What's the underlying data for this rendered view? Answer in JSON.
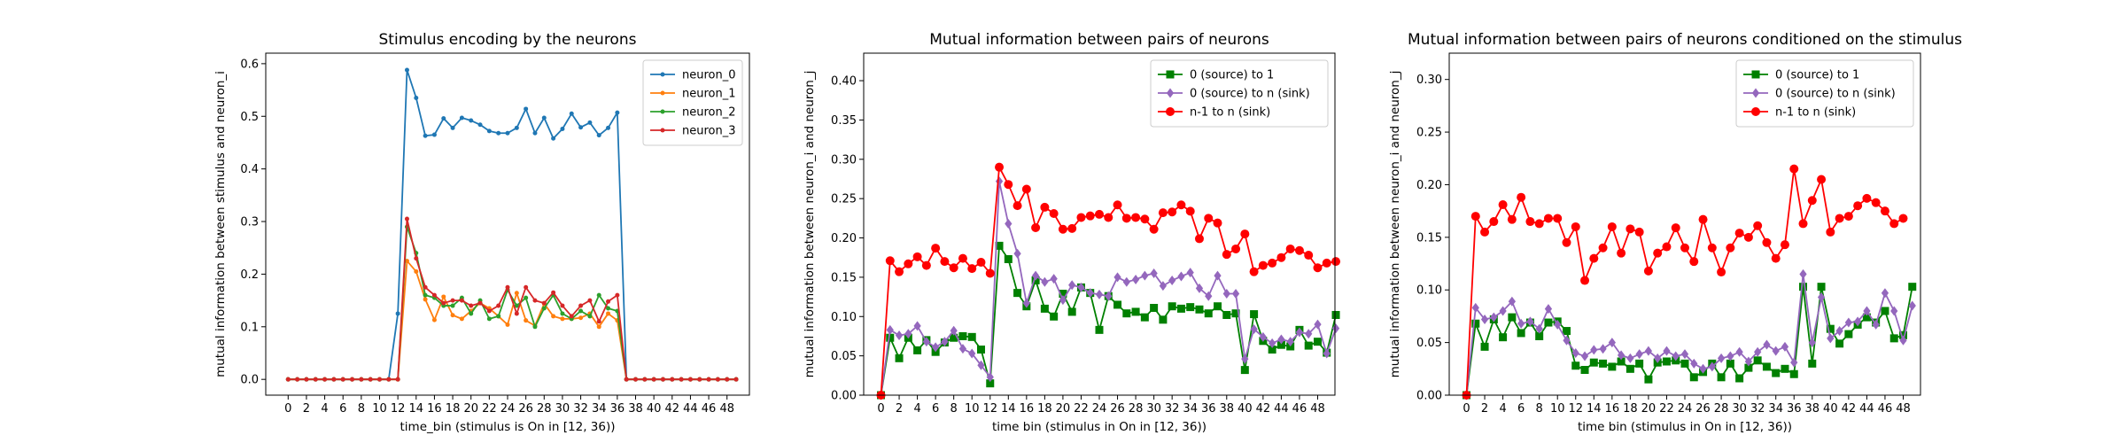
{
  "chart_data": [
    {
      "type": "line",
      "title": "Stimulus encoding by the neurons",
      "xlabel": "time_bin (stimulus is On in [12, 36))",
      "ylabel": "mutual information between stimulus and neuron_i",
      "xlim": [
        -2.45,
        50.45
      ],
      "ylim": [
        -0.03,
        0.62
      ],
      "xticks": [
        "0",
        "2",
        "4",
        "6",
        "8",
        "10",
        "12",
        "14",
        "16",
        "18",
        "20",
        "22",
        "24",
        "26",
        "28",
        "30",
        "32",
        "34",
        "36",
        "38",
        "40",
        "42",
        "44",
        "46",
        "48"
      ],
      "yticks": [
        "0.0",
        "0.1",
        "0.2",
        "0.3",
        "0.4",
        "0.5",
        "0.6"
      ],
      "legend_position": "top-right",
      "series": [
        {
          "name": "neuron_0",
          "color": "#1f77b4",
          "marker": "dot",
          "values": [
            0,
            0,
            0,
            0,
            0,
            0,
            0,
            0,
            0,
            0,
            0,
            0,
            0.125,
            0.588,
            0.535,
            0.463,
            0.465,
            0.496,
            0.478,
            0.497,
            0.492,
            0.484,
            0.472,
            0.468,
            0.468,
            0.478,
            0.514,
            0.468,
            0.497,
            0.458,
            0.476,
            0.505,
            0.479,
            0.488,
            0.464,
            0.478,
            0.507,
            0,
            0,
            0,
            0,
            0,
            0,
            0,
            0,
            0,
            0,
            0,
            0,
            0
          ]
        },
        {
          "name": "neuron_1",
          "color": "#ff7f0e",
          "marker": "dot",
          "values": [
            0,
            0,
            0,
            0,
            0,
            0,
            0,
            0,
            0,
            0,
            0,
            0,
            0,
            0.225,
            0.205,
            0.152,
            0.113,
            0.157,
            0.122,
            0.115,
            0.13,
            0.145,
            0.135,
            0.12,
            0.104,
            0.164,
            0.112,
            0.102,
            0.144,
            0.12,
            0.115,
            0.115,
            0.117,
            0.125,
            0.1,
            0.125,
            0.112,
            0,
            0,
            0,
            0,
            0,
            0,
            0,
            0,
            0,
            0,
            0,
            0,
            0
          ]
        },
        {
          "name": "neuron_2",
          "color": "#2ca02c",
          "marker": "dot",
          "values": [
            0,
            0,
            0,
            0,
            0,
            0,
            0,
            0,
            0,
            0,
            0,
            0,
            0,
            0.29,
            0.24,
            0.16,
            0.155,
            0.14,
            0.14,
            0.155,
            0.125,
            0.15,
            0.115,
            0.12,
            0.17,
            0.14,
            0.155,
            0.1,
            0.135,
            0.16,
            0.125,
            0.115,
            0.13,
            0.12,
            0.16,
            0.135,
            0.13,
            0,
            0,
            0,
            0,
            0,
            0,
            0,
            0,
            0,
            0,
            0,
            0,
            0
          ]
        },
        {
          "name": "neuron_3",
          "color": "#d62728",
          "marker": "dot",
          "values": [
            0,
            0,
            0,
            0,
            0,
            0,
            0,
            0,
            0,
            0,
            0,
            0,
            0,
            0.305,
            0.23,
            0.175,
            0.16,
            0.145,
            0.15,
            0.15,
            0.14,
            0.145,
            0.13,
            0.14,
            0.175,
            0.125,
            0.175,
            0.15,
            0.145,
            0.165,
            0.14,
            0.12,
            0.14,
            0.15,
            0.11,
            0.148,
            0.16,
            0,
            0,
            0,
            0,
            0,
            0,
            0,
            0,
            0,
            0,
            0,
            0,
            0
          ]
        }
      ]
    },
    {
      "type": "line",
      "title": "Mutual information between pairs of neurons",
      "xlabel": "time bin (stimulus in On in [12, 36))",
      "ylabel": "mutual information between neuron_i and neuron_j",
      "xlim": [
        -1.9,
        49.9
      ],
      "ylim": [
        0,
        0.435
      ],
      "xticks": [
        "0",
        "2",
        "4",
        "6",
        "8",
        "10",
        "12",
        "14",
        "16",
        "18",
        "20",
        "22",
        "24",
        "26",
        "28",
        "30",
        "32",
        "34",
        "36",
        "38",
        "40",
        "42",
        "44",
        "46",
        "48"
      ],
      "yticks": [
        "0.00",
        "0.05",
        "0.10",
        "0.15",
        "0.20",
        "0.25",
        "0.30",
        "0.35",
        "0.40"
      ],
      "legend_position": "top-right",
      "series": [
        {
          "name": "0 (source) to 1",
          "color": "#008000",
          "marker": "square",
          "values": [
            0,
            0.073,
            0.047,
            0.073,
            0.057,
            0.07,
            0.055,
            0.067,
            0.073,
            0.075,
            0.074,
            0.058,
            0.015,
            0.19,
            0.173,
            0.13,
            0.113,
            0.146,
            0.11,
            0.1,
            0.129,
            0.106,
            0.137,
            0.13,
            0.083,
            0.126,
            0.115,
            0.104,
            0.106,
            0.099,
            0.111,
            0.096,
            0.113,
            0.11,
            0.112,
            0.109,
            0.104,
            0.113,
            0.102,
            0.104,
            0.032,
            0.103,
            0.069,
            0.058,
            0.064,
            0.062,
            0.083,
            0.063,
            0.068,
            0.054,
            0.102
          ]
        },
        {
          "name": "0 (source) to n (sink)",
          "color": "#9467bd",
          "marker": "diamond",
          "values": [
            0,
            0.083,
            0.076,
            0.078,
            0.088,
            0.068,
            0.061,
            0.068,
            0.082,
            0.059,
            0.053,
            0.038,
            0.023,
            0.272,
            0.218,
            0.18,
            0.117,
            0.152,
            0.144,
            0.148,
            0.121,
            0.14,
            0.137,
            0.13,
            0.128,
            0.126,
            0.15,
            0.144,
            0.147,
            0.152,
            0.155,
            0.139,
            0.146,
            0.151,
            0.156,
            0.136,
            0.126,
            0.152,
            0.129,
            0.129,
            0.046,
            0.084,
            0.074,
            0.066,
            0.071,
            0.068,
            0.08,
            0.078,
            0.09,
            0.053,
            0.085
          ]
        },
        {
          "name": "n-1 to n (sink)",
          "color": "#ff0000",
          "marker": "circle",
          "values": [
            0,
            0.171,
            0.157,
            0.167,
            0.176,
            0.165,
            0.187,
            0.17,
            0.162,
            0.174,
            0.161,
            0.169,
            0.155,
            0.29,
            0.268,
            0.241,
            0.262,
            0.213,
            0.239,
            0.231,
            0.211,
            0.212,
            0.226,
            0.228,
            0.23,
            0.226,
            0.242,
            0.225,
            0.226,
            0.224,
            0.211,
            0.232,
            0.233,
            0.242,
            0.234,
            0.199,
            0.225,
            0.219,
            0.179,
            0.186,
            0.205,
            0.157,
            0.165,
            0.168,
            0.175,
            0.186,
            0.184,
            0.178,
            0.162,
            0.168,
            0.17
          ]
        }
      ]
    },
    {
      "type": "line",
      "title": "Mutual information between pairs of neurons conditioned on the stimulus",
      "xlabel": "time bin (stimulus in On in [12, 36))",
      "ylabel": "mutual information between neuron_i and neuron_j",
      "xlim": [
        -1.9,
        49.9
      ],
      "ylim": [
        0,
        0.325
      ],
      "xticks": [
        "0",
        "2",
        "4",
        "6",
        "8",
        "10",
        "12",
        "14",
        "16",
        "18",
        "20",
        "22",
        "24",
        "26",
        "28",
        "30",
        "32",
        "34",
        "36",
        "38",
        "40",
        "42",
        "44",
        "46",
        "48"
      ],
      "yticks": [
        "0.00",
        "0.05",
        "0.10",
        "0.15",
        "0.20",
        "0.25",
        "0.30"
      ],
      "legend_position": "top-right",
      "series": [
        {
          "name": "0 (source) to 1",
          "color": "#008000",
          "marker": "square",
          "values": [
            0,
            0.068,
            0.046,
            0.072,
            0.055,
            0.074,
            0.059,
            0.069,
            0.056,
            0.069,
            0.07,
            0.061,
            0.028,
            0.024,
            0.031,
            0.03,
            0.027,
            0.032,
            0.025,
            0.03,
            0.015,
            0.031,
            0.032,
            0.033,
            0.03,
            0.017,
            0.022,
            0.03,
            0.017,
            0.03,
            0.016,
            0.026,
            0.033,
            0.027,
            0.021,
            0.025,
            0.02,
            0.103,
            0.03,
            0.103,
            0.063,
            0.049,
            0.058,
            0.067,
            0.074,
            0.069,
            0.08,
            0.054,
            0.057,
            0.103
          ]
        },
        {
          "name": "0 (source) to n (sink)",
          "color": "#9467bd",
          "marker": "diamond",
          "values": [
            0,
            0.083,
            0.072,
            0.074,
            0.08,
            0.089,
            0.068,
            0.07,
            0.063,
            0.082,
            0.067,
            0.052,
            0.04,
            0.037,
            0.043,
            0.044,
            0.05,
            0.038,
            0.035,
            0.039,
            0.042,
            0.035,
            0.042,
            0.037,
            0.039,
            0.03,
            0.025,
            0.027,
            0.035,
            0.037,
            0.041,
            0.032,
            0.041,
            0.048,
            0.042,
            0.046,
            0.031,
            0.115,
            0.05,
            0.093,
            0.054,
            0.061,
            0.069,
            0.07,
            0.08,
            0.067,
            0.097,
            0.08,
            0.052,
            0.085
          ]
        },
        {
          "name": "n-1 to n (sink)",
          "color": "#ff0000",
          "marker": "circle",
          "values": [
            0,
            0.17,
            0.155,
            0.165,
            0.181,
            0.167,
            0.188,
            0.165,
            0.163,
            0.168,
            0.168,
            0.145,
            0.16,
            0.109,
            0.13,
            0.14,
            0.16,
            0.135,
            0.158,
            0.155,
            0.118,
            0.135,
            0.141,
            0.159,
            0.14,
            0.127,
            0.167,
            0.14,
            0.117,
            0.14,
            0.154,
            0.15,
            0.161,
            0.145,
            0.13,
            0.143,
            0.215,
            0.163,
            0.185,
            0.205,
            0.155,
            0.168,
            0.17,
            0.18,
            0.187,
            0.183,
            0.175,
            0.163,
            0.168
          ]
        }
      ]
    }
  ]
}
